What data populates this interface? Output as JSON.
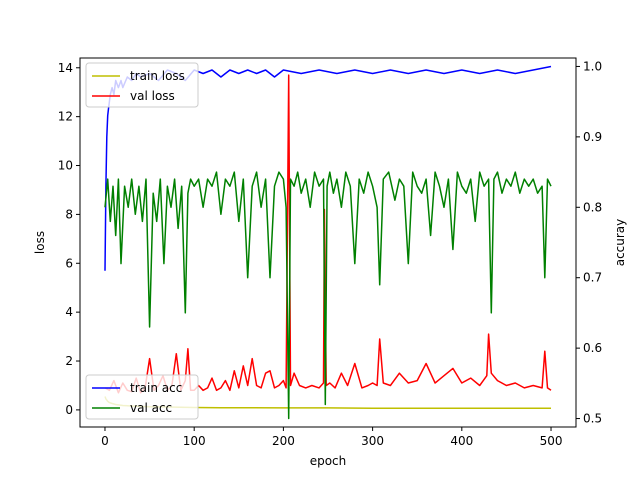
{
  "chart_data": {
    "type": "line",
    "xlabel": "epoch",
    "ylabel_left": "loss",
    "ylabel_right": "accuray",
    "xlim": [
      -28,
      528
    ],
    "ylim_left": [
      -0.7,
      14.4
    ],
    "ylim_right": [
      0.488,
      1.012
    ],
    "xticks": [
      0,
      100,
      200,
      300,
      400,
      500
    ],
    "yticks_left": [
      0,
      2,
      4,
      6,
      8,
      10,
      12,
      14
    ],
    "yticks_right": [
      0.5,
      0.6,
      0.7,
      0.8,
      0.9,
      1.0
    ],
    "grid": false,
    "legend_loss": {
      "placement": "top-left",
      "entries": [
        {
          "name": "train loss",
          "color": "#bfbf00"
        },
        {
          "name": "val loss",
          "color": "#ff0000"
        }
      ]
    },
    "legend_acc": {
      "placement": "bottom-left",
      "entries": [
        {
          "name": "train acc",
          "color": "#0000ff"
        },
        {
          "name": "val acc",
          "color": "#008000"
        }
      ]
    },
    "series": [
      {
        "name": "train loss",
        "axis": "left",
        "color": "#bfbf00",
        "x": [
          0,
          1,
          2,
          3,
          5,
          8,
          12,
          20,
          30,
          50,
          70,
          100,
          130,
          160,
          200,
          250,
          300,
          350,
          400,
          450,
          500
        ],
        "y": [
          0.55,
          0.45,
          0.4,
          0.35,
          0.3,
          0.26,
          0.22,
          0.18,
          0.16,
          0.13,
          0.12,
          0.1,
          0.09,
          0.09,
          0.08,
          0.08,
          0.07,
          0.07,
          0.07,
          0.07,
          0.07
        ]
      },
      {
        "name": "val loss",
        "axis": "left",
        "color": "#ff0000",
        "x": [
          0,
          5,
          10,
          15,
          20,
          25,
          30,
          35,
          40,
          45,
          50,
          55,
          60,
          65,
          70,
          75,
          80,
          85,
          90,
          93,
          96,
          100,
          105,
          110,
          115,
          120,
          125,
          130,
          135,
          140,
          145,
          150,
          155,
          160,
          165,
          170,
          175,
          180,
          185,
          190,
          195,
          200,
          203,
          206,
          208,
          212,
          218,
          225,
          232,
          240,
          245,
          246,
          248,
          252,
          258,
          265,
          272,
          280,
          288,
          295,
          300,
          305,
          308,
          312,
          320,
          330,
          340,
          350,
          360,
          370,
          380,
          390,
          400,
          410,
          420,
          428,
          430,
          433,
          440,
          450,
          460,
          470,
          480,
          490,
          493,
          496,
          500
        ],
        "y": [
          0.9,
          0.8,
          1.2,
          0.7,
          1.1,
          0.8,
          0.75,
          1.3,
          0.7,
          0.9,
          2.1,
          0.8,
          1.0,
          1.4,
          0.8,
          1.0,
          2.3,
          0.8,
          1.2,
          2.5,
          0.8,
          0.8,
          1.0,
          0.8,
          0.9,
          1.3,
          0.8,
          0.9,
          1.2,
          0.8,
          1.6,
          0.9,
          1.8,
          1.0,
          2.1,
          1.0,
          0.9,
          1.5,
          1.6,
          0.9,
          1.0,
          1.2,
          0.9,
          13.7,
          1.0,
          1.5,
          1.0,
          0.9,
          1.0,
          0.9,
          1.1,
          8.2,
          1.0,
          1.1,
          0.9,
          1.5,
          1.0,
          1.9,
          0.9,
          1.0,
          1.1,
          1.0,
          2.9,
          1.1,
          1.0,
          1.5,
          1.1,
          1.2,
          1.9,
          1.1,
          1.4,
          1.7,
          1.1,
          1.3,
          1.0,
          1.4,
          3.1,
          1.5,
          1.2,
          1.0,
          1.1,
          0.9,
          1.0,
          0.9,
          2.4,
          0.9,
          0.8
        ]
      },
      {
        "name": "train acc",
        "axis": "right",
        "color": "#0000ff",
        "x": [
          0,
          1,
          2,
          3,
          4,
          5,
          6,
          8,
          10,
          12,
          15,
          18,
          20,
          25,
          30,
          35,
          40,
          50,
          60,
          70,
          80,
          90,
          100,
          110,
          120,
          130,
          140,
          150,
          160,
          170,
          180,
          190,
          200,
          220,
          240,
          260,
          280,
          300,
          320,
          340,
          360,
          380,
          400,
          420,
          440,
          460,
          480,
          500
        ],
        "y": [
          0.71,
          0.83,
          0.9,
          0.93,
          0.94,
          0.95,
          0.96,
          0.97,
          0.96,
          0.98,
          0.97,
          0.98,
          0.97,
          0.985,
          0.98,
          0.99,
          0.985,
          0.99,
          0.98,
          0.995,
          0.99,
          0.98,
          0.995,
          0.99,
          0.995,
          0.985,
          0.995,
          0.99,
          0.995,
          0.99,
          0.995,
          0.985,
          0.995,
          0.99,
          0.995,
          0.99,
          0.995,
          0.99,
          0.995,
          0.99,
          0.995,
          0.99,
          0.995,
          0.99,
          0.995,
          0.99,
          0.995,
          1.0
        ]
      },
      {
        "name": "val acc",
        "axis": "right",
        "color": "#008000",
        "x": [
          0,
          3,
          6,
          9,
          12,
          15,
          18,
          22,
          26,
          30,
          34,
          38,
          42,
          46,
          50,
          54,
          58,
          62,
          66,
          70,
          74,
          78,
          82,
          86,
          90,
          93,
          96,
          100,
          105,
          110,
          115,
          120,
          125,
          130,
          135,
          140,
          145,
          150,
          155,
          160,
          165,
          170,
          175,
          180,
          185,
          190,
          195,
          200,
          203,
          206,
          208,
          212,
          216,
          220,
          225,
          230,
          235,
          240,
          245,
          247,
          249,
          252,
          256,
          260,
          265,
          270,
          275,
          280,
          285,
          290,
          295,
          300,
          305,
          308,
          312,
          318,
          325,
          330,
          335,
          340,
          345,
          350,
          355,
          360,
          365,
          370,
          375,
          380,
          385,
          390,
          395,
          400,
          405,
          410,
          415,
          420,
          425,
          430,
          433,
          436,
          440,
          445,
          450,
          455,
          460,
          465,
          470,
          475,
          480,
          485,
          490,
          493,
          496,
          500
        ],
        "y": [
          0.8,
          0.84,
          0.78,
          0.83,
          0.76,
          0.84,
          0.72,
          0.83,
          0.8,
          0.84,
          0.79,
          0.83,
          0.78,
          0.84,
          0.63,
          0.82,
          0.78,
          0.84,
          0.72,
          0.83,
          0.8,
          0.84,
          0.77,
          0.83,
          0.65,
          0.82,
          0.84,
          0.83,
          0.84,
          0.8,
          0.84,
          0.83,
          0.85,
          0.79,
          0.84,
          0.83,
          0.85,
          0.78,
          0.84,
          0.7,
          0.83,
          0.85,
          0.8,
          0.84,
          0.7,
          0.83,
          0.85,
          0.84,
          0.8,
          0.5,
          0.84,
          0.83,
          0.85,
          0.82,
          0.84,
          0.8,
          0.85,
          0.83,
          0.84,
          0.52,
          0.83,
          0.85,
          0.82,
          0.84,
          0.8,
          0.85,
          0.83,
          0.72,
          0.84,
          0.82,
          0.85,
          0.83,
          0.8,
          0.69,
          0.84,
          0.85,
          0.81,
          0.84,
          0.83,
          0.72,
          0.85,
          0.83,
          0.82,
          0.84,
          0.76,
          0.85,
          0.83,
          0.8,
          0.84,
          0.74,
          0.85,
          0.83,
          0.82,
          0.84,
          0.78,
          0.85,
          0.83,
          0.84,
          0.65,
          0.84,
          0.85,
          0.82,
          0.84,
          0.83,
          0.85,
          0.82,
          0.84,
          0.83,
          0.84,
          0.82,
          0.83,
          0.7,
          0.84,
          0.83
        ]
      }
    ]
  }
}
